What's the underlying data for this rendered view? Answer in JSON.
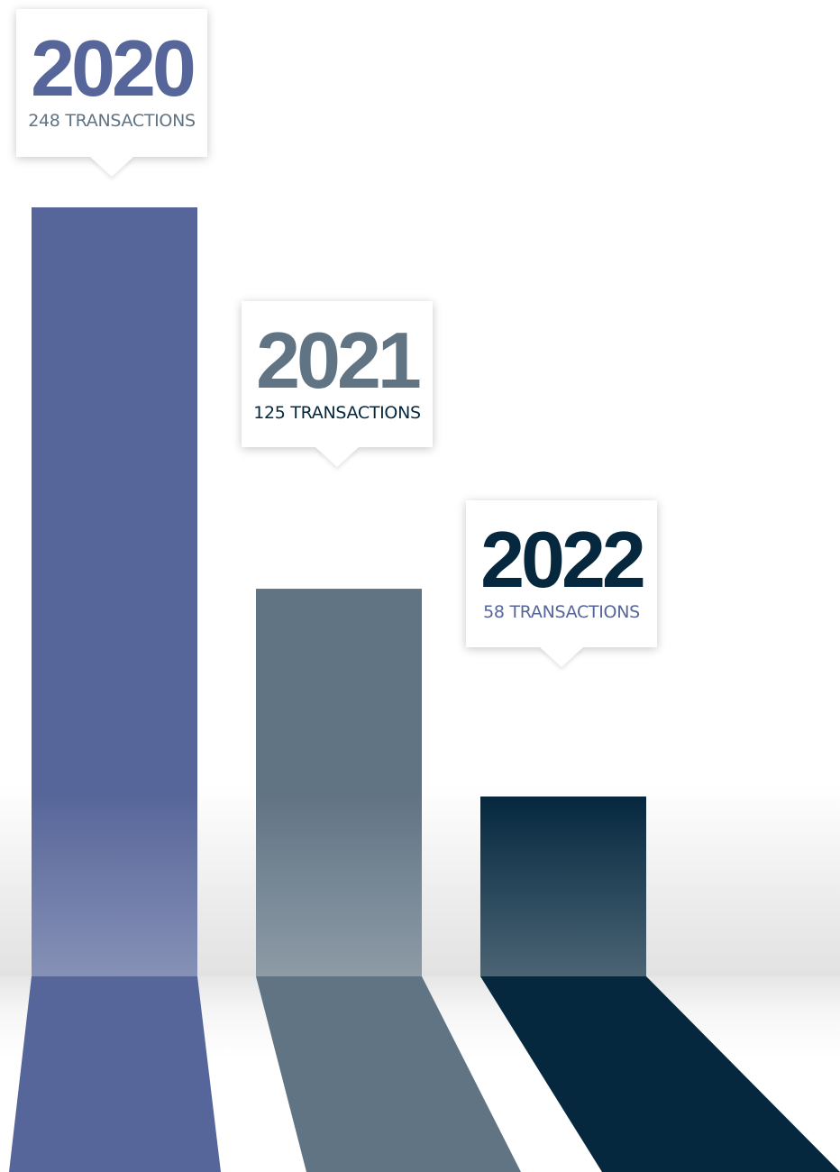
{
  "chart_data": {
    "type": "bar",
    "categories": [
      "2020",
      "2021",
      "2022"
    ],
    "values": [
      248,
      125,
      58
    ],
    "value_labels": [
      "248 TRANSACTIONS",
      "125 TRANSACTIONS",
      "58 TRANSACTIONS"
    ],
    "title": "",
    "xlabel": "",
    "ylabel": "",
    "grid": false,
    "legend": "none",
    "colors": [
      "#57669a",
      "#617484",
      "#05283f"
    ],
    "label_colors": {
      "year": [
        "#57669a",
        "#617484",
        "#05283f"
      ],
      "count": [
        "#617484",
        "#05283f",
        "#57669a"
      ]
    }
  }
}
